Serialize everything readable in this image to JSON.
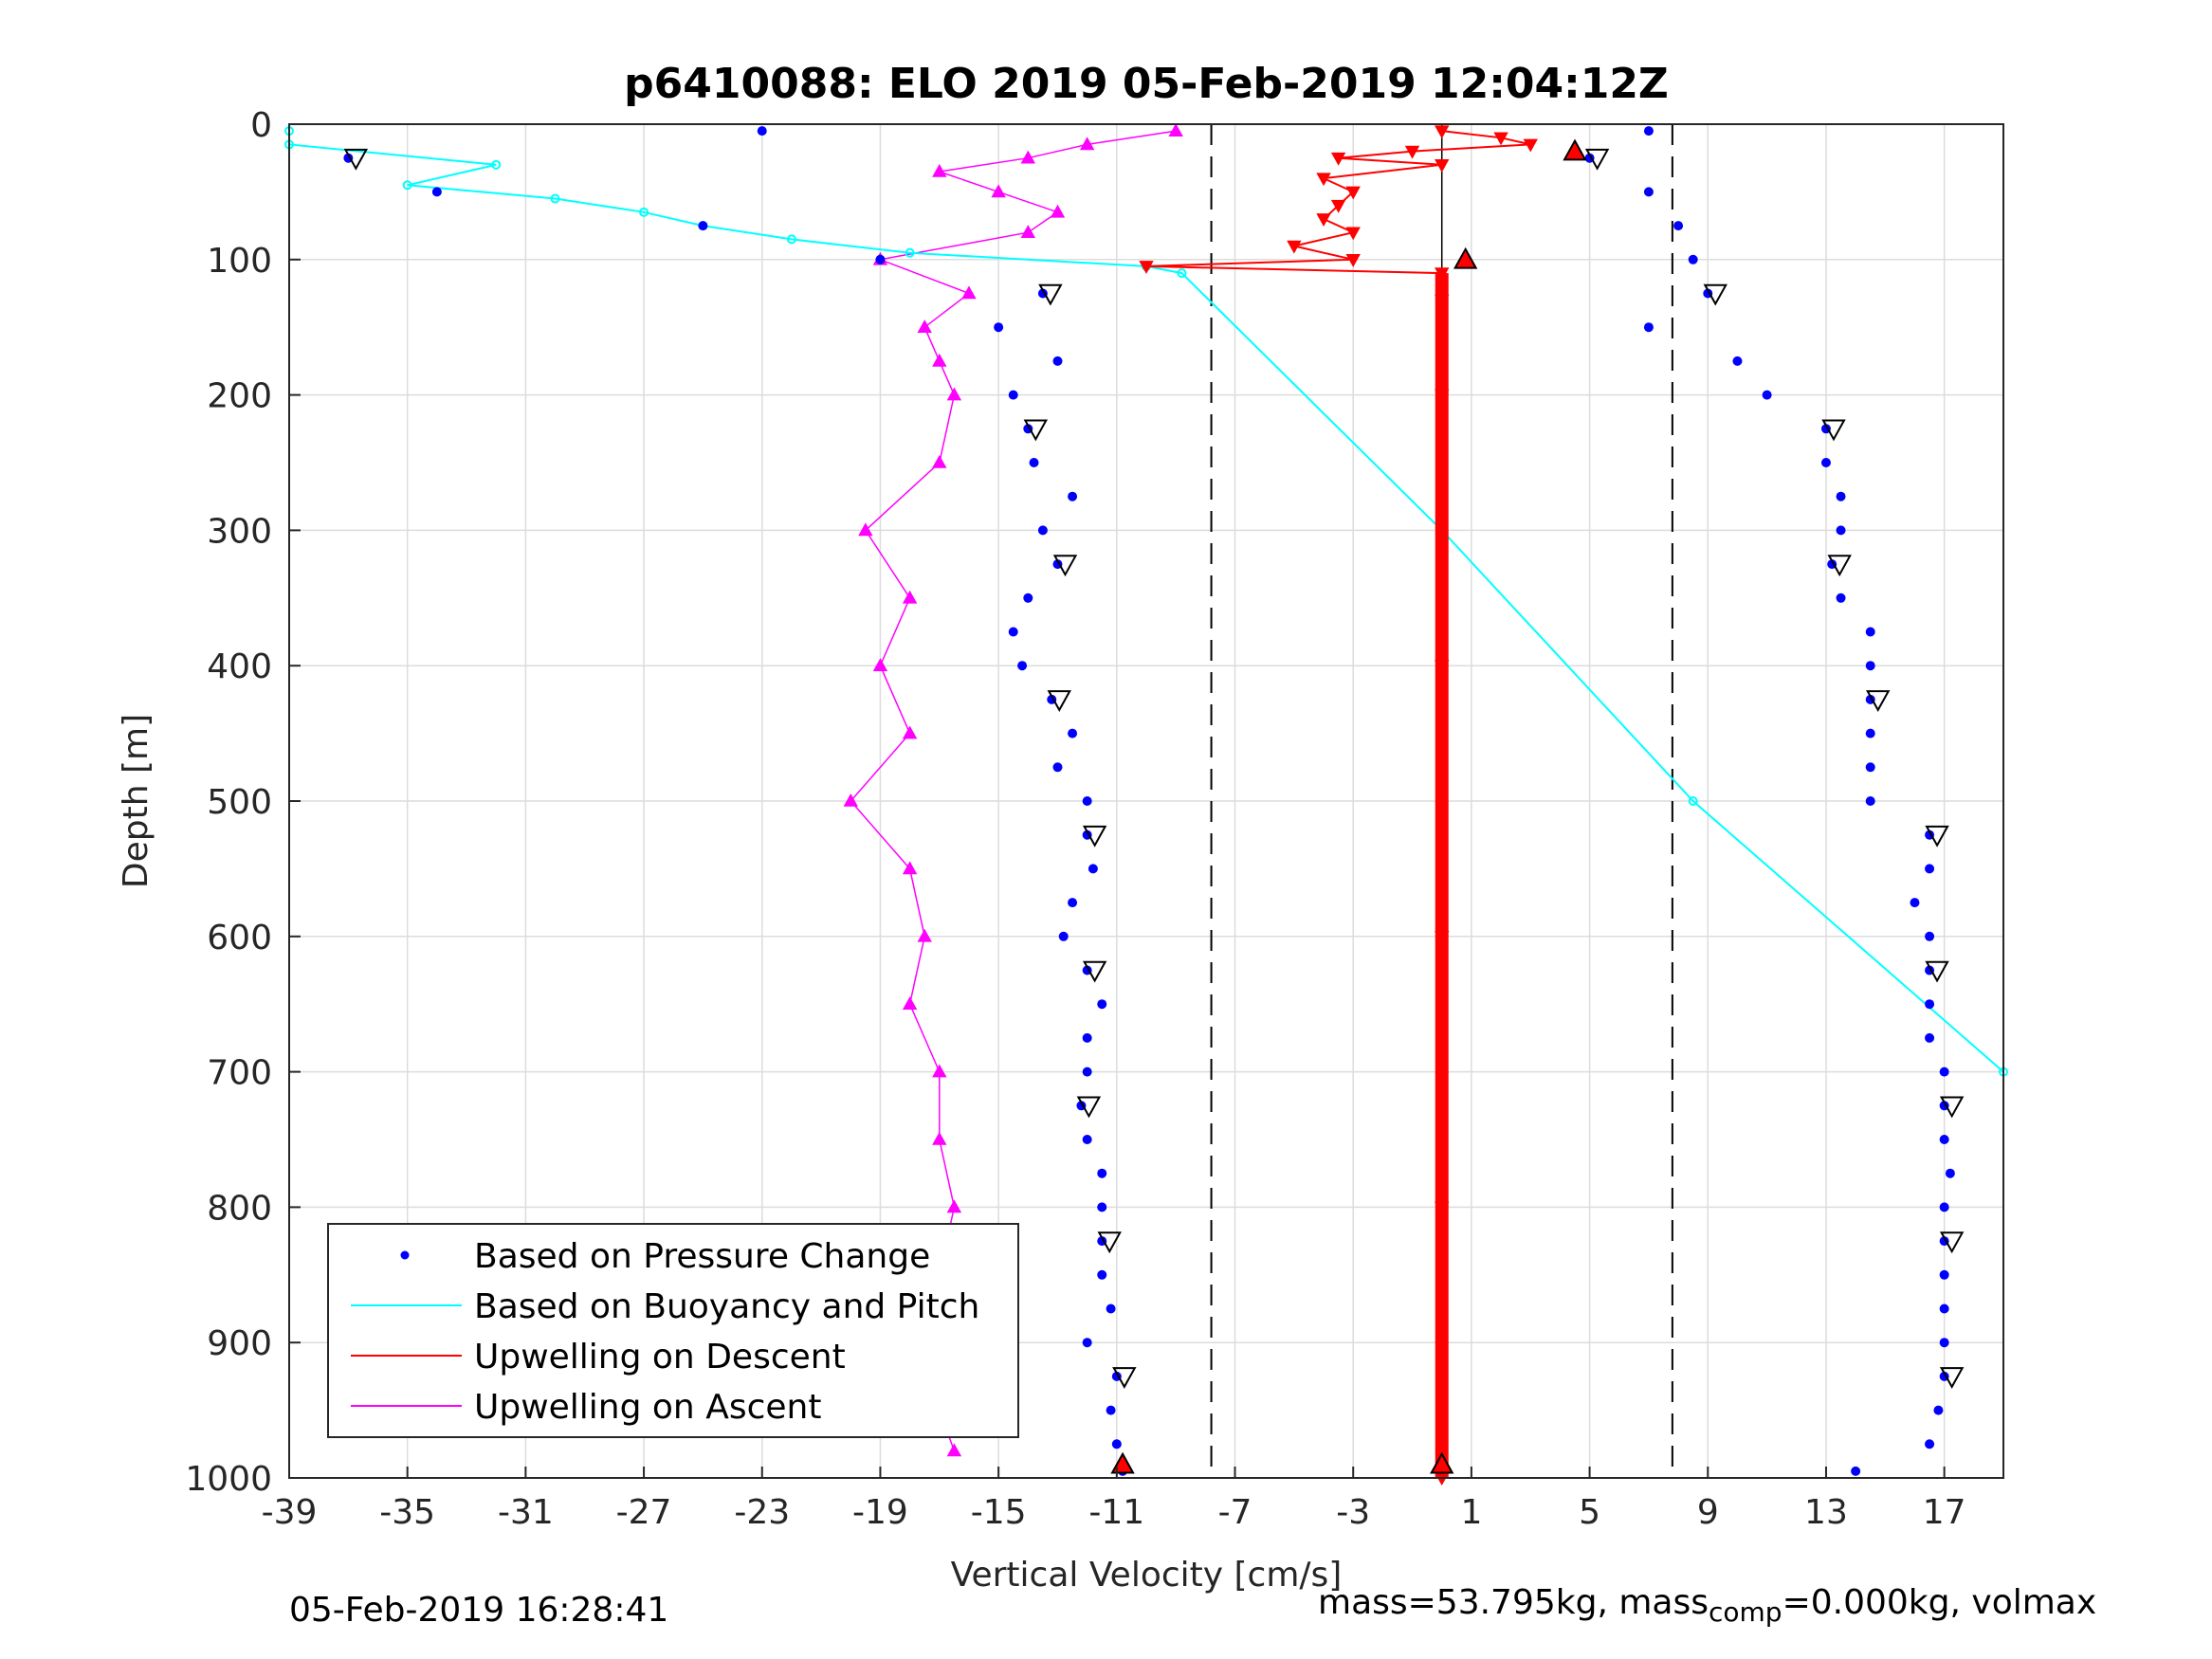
{
  "chart_data": {
    "type": "scatter",
    "title": "p6410088: ELO 2019 05-Feb-2019 12:04:12Z",
    "xlabel": "Vertical Velocity [cm/s]",
    "ylabel": "Depth [m]",
    "xlim": [
      -39,
      19
    ],
    "ylim": [
      1000,
      0
    ],
    "y_reversed": true,
    "grid": true,
    "x_ticks": [
      -39,
      -35,
      -31,
      -27,
      -23,
      -19,
      -15,
      -11,
      -7,
      -3,
      1,
      5,
      9,
      13,
      17
    ],
    "x_tick_labels": [
      "-39",
      "-35",
      "-31",
      "-27",
      "-23",
      "-19",
      "-15",
      "-11",
      "-7",
      "-3",
      "1",
      "5",
      "9",
      "13",
      "17"
    ],
    "y_ticks": [
      0,
      100,
      200,
      300,
      400,
      500,
      600,
      700,
      800,
      900,
      1000
    ],
    "y_tick_labels": [
      "0",
      "100",
      "200",
      "300",
      "400",
      "500",
      "600",
      "700",
      "800",
      "900",
      "1000"
    ],
    "dashed_lines_x": [
      -7.8,
      7.8
    ],
    "solid_line_x": 0,
    "legend": {
      "position": "bottom-left",
      "entries": [
        "Based on Pressure Change",
        "Based on Buoyancy and Pitch",
        "Upwelling on Descent",
        "Upwelling on Ascent"
      ]
    },
    "series": [
      {
        "name": "Based on Pressure Change",
        "marker": "dot",
        "color": "#0000ff",
        "descent_depth": [
          5,
          25,
          50,
          75,
          100,
          125,
          150,
          175,
          200,
          225,
          250,
          275,
          300,
          325,
          350,
          375,
          400,
          425,
          450,
          475,
          500,
          525,
          550,
          575,
          600,
          625,
          650,
          675,
          700,
          725,
          750,
          775,
          800,
          825,
          850,
          875,
          900,
          925,
          950,
          975,
          995
        ],
        "descent_velocity": [
          -23,
          -37,
          -34,
          -25,
          -19,
          -13.5,
          -15,
          -13,
          -14.5,
          -14,
          -13.8,
          -12.5,
          -13.5,
          -13,
          -14,
          -14.5,
          -14.2,
          -13.2,
          -12.5,
          -13,
          -12,
          -12,
          -11.8,
          -12.5,
          -12.8,
          -12,
          -11.5,
          -12,
          -12,
          -12.2,
          -12,
          -11.5,
          -11.5,
          -11.5,
          -11.5,
          -11.2,
          -12,
          -11,
          -11.2,
          -11,
          -10.8
        ],
        "ascent_depth": [
          5,
          25,
          50,
          75,
          100,
          125,
          150,
          175,
          200,
          225,
          250,
          275,
          300,
          325,
          350,
          375,
          400,
          425,
          450,
          475,
          500,
          525,
          550,
          575,
          600,
          625,
          650,
          675,
          700,
          725,
          750,
          775,
          800,
          825,
          850,
          875,
          900,
          925,
          950,
          975,
          995
        ],
        "ascent_velocity": [
          7,
          5,
          7,
          8,
          8.5,
          9,
          7,
          10,
          11,
          13,
          13,
          13.5,
          13.5,
          13.2,
          13.5,
          14.5,
          14.5,
          14.5,
          14.5,
          14.5,
          14.5,
          16.5,
          16.5,
          16,
          16.5,
          16.5,
          16.5,
          16.5,
          17,
          17,
          17,
          17.2,
          17,
          17,
          17,
          17,
          17,
          17,
          16.8,
          16.5,
          14
        ]
      },
      {
        "name": "Based on Buoyancy and Pitch",
        "marker": "circle-line",
        "color": "#00ffff",
        "depth": [
          5,
          15,
          30,
          45,
          55,
          65,
          75,
          85,
          95,
          105,
          110,
          300,
          500,
          700
        ],
        "velocity": [
          -39,
          -39,
          -32,
          -35,
          -30,
          -27,
          -25,
          -22,
          -18,
          -10,
          -8.8,
          0,
          8.5,
          19
        ]
      },
      {
        "name": "Upwelling on Descent",
        "marker": "triangle-down",
        "color": "#ff0000",
        "depth": [
          5,
          10,
          15,
          20,
          25,
          30,
          40,
          50,
          60,
          70,
          80,
          90,
          100,
          105,
          110,
          130,
          200,
          400,
          600,
          800,
          1000
        ],
        "velocity": [
          0,
          2,
          3,
          -1,
          -3.5,
          0,
          -4,
          -3,
          -3.5,
          -4,
          -3,
          -5,
          -3,
          -10,
          0,
          0,
          0,
          0,
          0,
          0,
          0
        ]
      },
      {
        "name": "Upwelling on Ascent",
        "marker": "triangle-up",
        "color": "#ff00ff",
        "depth": [
          5,
          15,
          25,
          35,
          50,
          65,
          80,
          100,
          125,
          150,
          175,
          200,
          250,
          300,
          350,
          400,
          450,
          500,
          550,
          600,
          650,
          700,
          750,
          800,
          850,
          900,
          950,
          980
        ],
        "velocity": [
          -9,
          -12,
          -14,
          -17,
          -15,
          -13,
          -14,
          -19,
          -16,
          -17.5,
          -17,
          -16.5,
          -17,
          -19.5,
          -18,
          -19,
          -18,
          -20,
          -18,
          -17.5,
          -18,
          -17,
          -17,
          -16.5,
          -17,
          -17.5,
          -17,
          -16.5
        ]
      }
    ]
  },
  "footer": {
    "left": "05-Feb-2019 16:28:41",
    "right_pre": "mass=53.795kg, mass",
    "right_sub": "comp",
    "right_post": "=0.000kg, volmax"
  }
}
